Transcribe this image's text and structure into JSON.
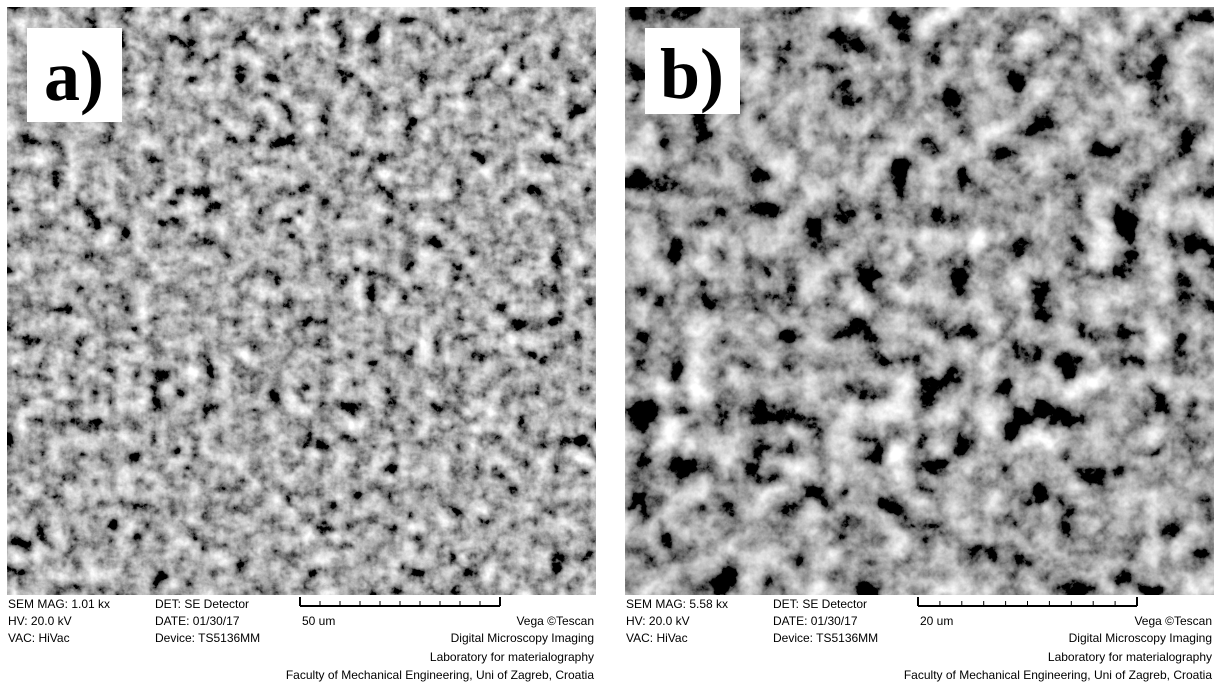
{
  "panels": [
    {
      "label": "a)",
      "info": {
        "mag": "SEM MAG: 1.01 kx",
        "hv": "HV:  20.0 kV",
        "vac": "VAC: HiVac",
        "det": "DET: SE Detector",
        "date": "DATE: 01/30/17",
        "device": "Device: TS5136MM",
        "scale": "50 um",
        "vendor": "Vega ©Tescan",
        "line1": "Digital Microscopy Imaging",
        "line2": "Laboratory for materialography",
        "line3": "Faculty of Mechanical Engineering, Uni of Zagreb, Croatia"
      }
    },
    {
      "label": "b)",
      "info": {
        "mag": "SEM MAG: 5.58 kx",
        "hv": "HV:  20.0 kV",
        "vac": "VAC: HiVac",
        "det": "DET: SE Detector",
        "date": "DATE: 01/30/17",
        "device": "Device: TS5136MM",
        "scale": "20 um",
        "vendor": "Vega ©Tescan",
        "line1": "Digital Microscopy Imaging",
        "line2": "Laboratory for materialography",
        "line3": "Faculty of Mechanical Engineering, Uni of Zagreb, Croatia"
      }
    }
  ]
}
